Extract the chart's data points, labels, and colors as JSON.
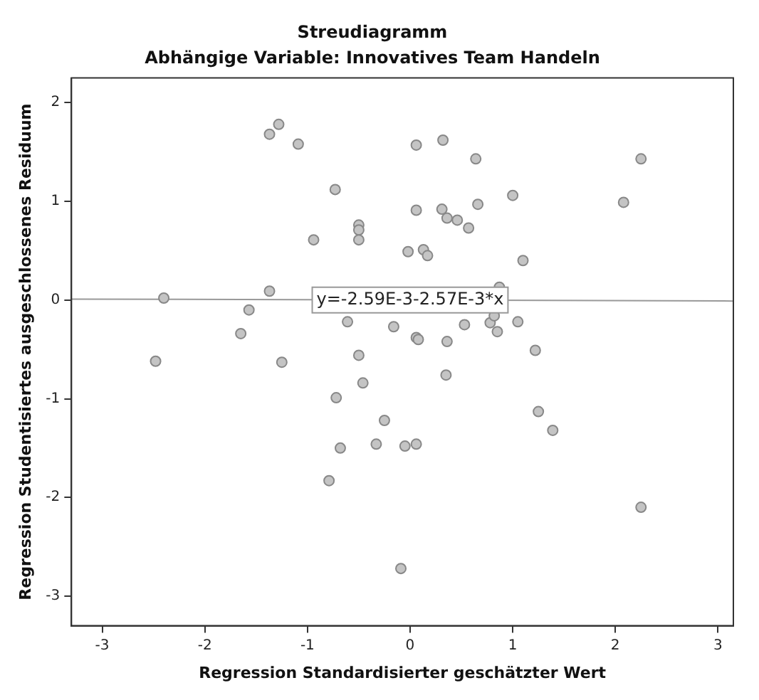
{
  "chart_data": {
    "type": "scatter",
    "title": "Streudiagramm",
    "subtitle": "Abhängige Variable: Innovatives Team Handeln",
    "xlabel": "Regression Standardisierter geschätzter Wert",
    "ylabel": "Regression Studentisiertes ausgeschlossenes Residuum",
    "xlim": [
      -3.3,
      3.15
    ],
    "ylim": [
      -3.3,
      2.25
    ],
    "xticks": [
      -3,
      -2,
      -1,
      0,
      1,
      2,
      3
    ],
    "yticks": [
      -3,
      -2,
      -1,
      0,
      1,
      2
    ],
    "grid": false,
    "legend": false,
    "marker": "circle",
    "series": [
      {
        "type": "scatter",
        "color": "#c4c4c4",
        "x": [
          -1.28,
          -1.37,
          -1.09,
          -0.73,
          -0.94,
          -0.5,
          -0.5,
          -0.5,
          -0.02,
          -2.4,
          -1.37,
          -1.57,
          -1.65,
          -0.61,
          -0.16,
          -0.5,
          -2.48,
          -1.25,
          0.06,
          0.32,
          0.64,
          2.25,
          1.0,
          2.08,
          0.06,
          0.31,
          0.36,
          0.46,
          0.66,
          0.57,
          0.13,
          0.17,
          1.1,
          0.87,
          0.06,
          0.08,
          0.36,
          0.53,
          0.78,
          0.85,
          0.82,
          1.05,
          1.22,
          -0.46,
          -0.72,
          -0.25,
          -0.68,
          -0.33,
          -0.05,
          -0.79,
          -0.09,
          0.35,
          0.06,
          1.25,
          1.39,
          2.25
        ],
        "values": [
          1.78,
          1.68,
          1.58,
          1.12,
          0.61,
          0.76,
          0.71,
          0.61,
          0.49,
          0.02,
          0.09,
          -0.1,
          -0.34,
          -0.22,
          -0.27,
          -0.56,
          -0.62,
          -0.63,
          1.57,
          1.62,
          1.43,
          1.43,
          1.06,
          0.99,
          0.91,
          0.92,
          0.83,
          0.81,
          0.97,
          0.73,
          0.51,
          0.45,
          0.4,
          0.13,
          -0.38,
          -0.4,
          -0.42,
          -0.25,
          -0.23,
          -0.32,
          -0.16,
          -0.22,
          -0.51,
          -0.84,
          -0.99,
          -1.22,
          -1.5,
          -1.46,
          -1.48,
          -1.83,
          -2.72,
          -0.76,
          -1.46,
          -1.13,
          -1.32,
          -2.1
        ]
      },
      {
        "type": "line",
        "marker": "none",
        "color": "#999999",
        "x": [
          -3.3,
          3.15
        ],
        "values": [
          0.01,
          -0.01
        ]
      }
    ],
    "annotations": [
      {
        "text": "y=-2.59E-3-2.57E-3*x",
        "x": 0,
        "y": 0
      }
    ]
  }
}
